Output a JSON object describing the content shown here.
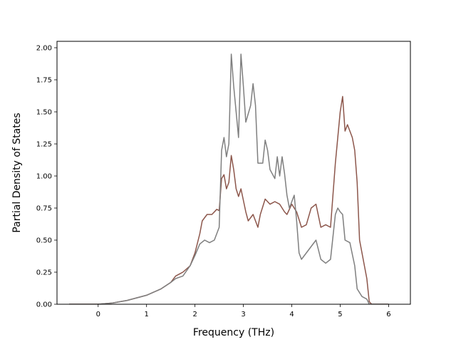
{
  "chart_data": {
    "type": "line",
    "xlabel": "Frequency (THz)",
    "ylabel": "Partial Density of States",
    "xlim": [
      -0.85,
      6.45
    ],
    "ylim": [
      0.0,
      2.05
    ],
    "xticks": [
      0,
      1,
      2,
      3,
      4,
      5,
      6
    ],
    "yticks": [
      0.0,
      0.25,
      0.5,
      0.75,
      1.0,
      1.25,
      1.5,
      1.75,
      2.0
    ],
    "xtick_labels": [
      "0",
      "1",
      "2",
      "3",
      "4",
      "5",
      "6"
    ],
    "ytick_labels": [
      "0.00",
      "0.25",
      "0.50",
      "0.75",
      "1.00",
      "1.25",
      "1.50",
      "1.75",
      "2.00"
    ],
    "grid": false,
    "legend": false,
    "series": [
      {
        "color": "#8c564b",
        "points": [
          [
            -0.6,
            0.0
          ],
          [
            0.0,
            0.0
          ],
          [
            0.3,
            0.01
          ],
          [
            0.6,
            0.03
          ],
          [
            1.0,
            0.07
          ],
          [
            1.3,
            0.12
          ],
          [
            1.5,
            0.17
          ],
          [
            1.6,
            0.22
          ],
          [
            1.75,
            0.25
          ],
          [
            1.9,
            0.3
          ],
          [
            2.0,
            0.4
          ],
          [
            2.1,
            0.55
          ],
          [
            2.15,
            0.65
          ],
          [
            2.25,
            0.7
          ],
          [
            2.35,
            0.7
          ],
          [
            2.45,
            0.74
          ],
          [
            2.5,
            0.73
          ],
          [
            2.55,
            0.98
          ],
          [
            2.6,
            1.01
          ],
          [
            2.65,
            0.9
          ],
          [
            2.7,
            0.95
          ],
          [
            2.75,
            1.16
          ],
          [
            2.8,
            1.05
          ],
          [
            2.85,
            0.9
          ],
          [
            2.9,
            0.84
          ],
          [
            2.95,
            0.9
          ],
          [
            3.05,
            0.72
          ],
          [
            3.1,
            0.65
          ],
          [
            3.2,
            0.7
          ],
          [
            3.3,
            0.6
          ],
          [
            3.35,
            0.7
          ],
          [
            3.45,
            0.82
          ],
          [
            3.55,
            0.78
          ],
          [
            3.65,
            0.8
          ],
          [
            3.75,
            0.78
          ],
          [
            3.85,
            0.72
          ],
          [
            3.9,
            0.7
          ],
          [
            4.0,
            0.78
          ],
          [
            4.1,
            0.72
          ],
          [
            4.2,
            0.6
          ],
          [
            4.3,
            0.62
          ],
          [
            4.4,
            0.75
          ],
          [
            4.5,
            0.78
          ],
          [
            4.6,
            0.6
          ],
          [
            4.7,
            0.62
          ],
          [
            4.8,
            0.6
          ],
          [
            4.85,
            0.85
          ],
          [
            4.9,
            1.1
          ],
          [
            4.95,
            1.3
          ],
          [
            5.0,
            1.5
          ],
          [
            5.05,
            1.62
          ],
          [
            5.1,
            1.35
          ],
          [
            5.15,
            1.4
          ],
          [
            5.25,
            1.3
          ],
          [
            5.3,
            1.2
          ],
          [
            5.35,
            0.95
          ],
          [
            5.4,
            0.5
          ],
          [
            5.5,
            0.3
          ],
          [
            5.55,
            0.2
          ],
          [
            5.6,
            0.02
          ],
          [
            5.65,
            0.0
          ],
          [
            6.0,
            0.0
          ]
        ]
      },
      {
        "color": "#7f7f7f",
        "points": [
          [
            -0.6,
            0.0
          ],
          [
            0.0,
            0.0
          ],
          [
            0.3,
            0.01
          ],
          [
            0.6,
            0.03
          ],
          [
            1.0,
            0.07
          ],
          [
            1.3,
            0.12
          ],
          [
            1.5,
            0.17
          ],
          [
            1.6,
            0.2
          ],
          [
            1.75,
            0.22
          ],
          [
            1.9,
            0.3
          ],
          [
            2.0,
            0.38
          ],
          [
            2.1,
            0.47
          ],
          [
            2.2,
            0.5
          ],
          [
            2.3,
            0.48
          ],
          [
            2.4,
            0.5
          ],
          [
            2.5,
            0.6
          ],
          [
            2.55,
            1.2
          ],
          [
            2.6,
            1.3
          ],
          [
            2.65,
            1.15
          ],
          [
            2.7,
            1.25
          ],
          [
            2.75,
            1.95
          ],
          [
            2.8,
            1.7
          ],
          [
            2.85,
            1.5
          ],
          [
            2.9,
            1.3
          ],
          [
            2.95,
            1.95
          ],
          [
            3.0,
            1.7
          ],
          [
            3.05,
            1.42
          ],
          [
            3.15,
            1.55
          ],
          [
            3.2,
            1.72
          ],
          [
            3.25,
            1.55
          ],
          [
            3.3,
            1.1
          ],
          [
            3.4,
            1.1
          ],
          [
            3.45,
            1.28
          ],
          [
            3.5,
            1.2
          ],
          [
            3.55,
            1.05
          ],
          [
            3.65,
            0.98
          ],
          [
            3.7,
            1.15
          ],
          [
            3.75,
            1.0
          ],
          [
            3.8,
            1.15
          ],
          [
            3.85,
            1.02
          ],
          [
            3.9,
            0.85
          ],
          [
            3.95,
            0.75
          ],
          [
            4.0,
            0.8
          ],
          [
            4.05,
            0.85
          ],
          [
            4.1,
            0.65
          ],
          [
            4.15,
            0.4
          ],
          [
            4.2,
            0.35
          ],
          [
            4.3,
            0.4
          ],
          [
            4.4,
            0.45
          ],
          [
            4.5,
            0.5
          ],
          [
            4.6,
            0.35
          ],
          [
            4.7,
            0.32
          ],
          [
            4.8,
            0.35
          ],
          [
            4.9,
            0.7
          ],
          [
            4.95,
            0.75
          ],
          [
            5.0,
            0.72
          ],
          [
            5.05,
            0.7
          ],
          [
            5.1,
            0.5
          ],
          [
            5.2,
            0.48
          ],
          [
            5.3,
            0.3
          ],
          [
            5.35,
            0.12
          ],
          [
            5.45,
            0.06
          ],
          [
            5.55,
            0.04
          ],
          [
            5.6,
            0.0
          ],
          [
            6.0,
            0.0
          ]
        ]
      }
    ]
  }
}
